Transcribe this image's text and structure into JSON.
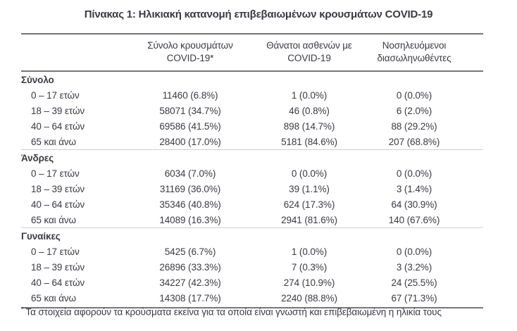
{
  "page": {
    "title": "Πίνακας 1: Ηλικιακή κατανομή επιβεβαιωμένων κρουσμάτων COVID-19"
  },
  "table": {
    "columns": [
      {
        "line1": "Σύνολο κρουσμάτων",
        "line2": "COVID-19*"
      },
      {
        "line1": "Θάνατοι ασθενών με",
        "line2": "COVID-19"
      },
      {
        "line1": "Νοσηλευόμενοι",
        "line2": "διασωληνωθέντες"
      }
    ],
    "sections": [
      {
        "label": "Σύνολο",
        "rows": [
          {
            "age": "0 – 17 ετών",
            "cases": "11460 (6.8%)",
            "deaths": "1 (0.0%)",
            "intubated": "0 (0.0%)"
          },
          {
            "age": "18 – 39 ετών",
            "cases": "58071 (34.7%)",
            "deaths": "46 (0.8%)",
            "intubated": "6 (2.0%)"
          },
          {
            "age": "40 – 64 ετών",
            "cases": "69586 (41.5%)",
            "deaths": "898 (14.7%)",
            "intubated": "88 (29.2%)"
          },
          {
            "age": "65 και άνω",
            "cases": "28400 (17.0%)",
            "deaths": "5181 (84.6%)",
            "intubated": "207 (68.8%)"
          }
        ]
      },
      {
        "label": "Άνδρες",
        "rows": [
          {
            "age": "0 – 17 ετών",
            "cases": "6034 (7.0%)",
            "deaths": "0 (0.0%)",
            "intubated": "0 (0.0%)"
          },
          {
            "age": "18 – 39 ετών",
            "cases": "31169 (36.0%)",
            "deaths": "39 (1.1%)",
            "intubated": "3 (1.4%)"
          },
          {
            "age": "40 – 64 ετών",
            "cases": "35346 (40.8%)",
            "deaths": "624 (17.3%)",
            "intubated": "64 (30.9%)"
          },
          {
            "age": "65 και άνω",
            "cases": "14089 (16.3%)",
            "deaths": "2941 (81.6%)",
            "intubated": "140 (67.6%)"
          }
        ]
      },
      {
        "label": "Γυναίκες",
        "rows": [
          {
            "age": "0 – 17 ετών",
            "cases": "5425 (6.7%)",
            "deaths": "1 (0.0%)",
            "intubated": "0 (0.0%)"
          },
          {
            "age": "18 – 39 ετών",
            "cases": "26896 (33.3%)",
            "deaths": "7 (0.3%)",
            "intubated": "3 (3.2%)"
          },
          {
            "age": "40 – 64 ετών",
            "cases": "34227 (42.3%)",
            "deaths": "274 (10.9%)",
            "intubated": "24 (25.5%)"
          },
          {
            "age": "65 και άνω",
            "cases": "14308 (17.7%)",
            "deaths": "2240 (88.8%)",
            "intubated": "67 (71.3%)"
          }
        ]
      }
    ],
    "footnote_marker": "*",
    "footnote": "Τα στοιχεία αφορούν τα κρούσματα εκείνα για τα οποία είναι γνωστή και επιβεβαιωμένη η ηλικία τους"
  },
  "colors": {
    "text": "#3a3a42",
    "rule_dark": "#76767b",
    "rule_light": "#cfcfcf",
    "background": "#ffffff"
  }
}
